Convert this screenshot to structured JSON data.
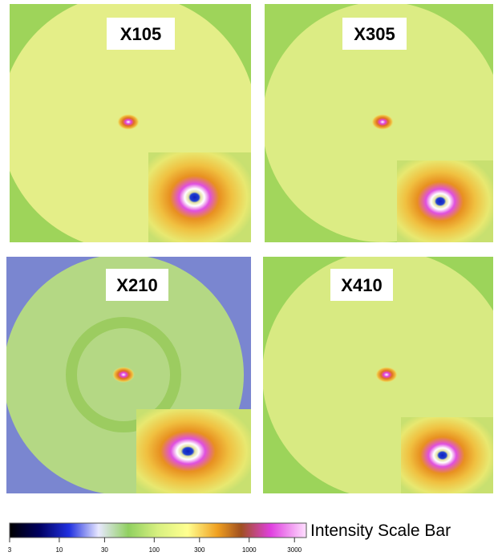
{
  "panels": [
    {
      "label": "X105"
    },
    {
      "label": "X305"
    },
    {
      "label": "X210"
    },
    {
      "label": "X410"
    }
  ],
  "scale_bar": {
    "title": "Intensity Scale Bar",
    "log_scale": true,
    "lim": [
      3,
      4000
    ],
    "ticks": [
      3,
      10,
      30,
      100,
      300,
      1000,
      3000
    ]
  }
}
